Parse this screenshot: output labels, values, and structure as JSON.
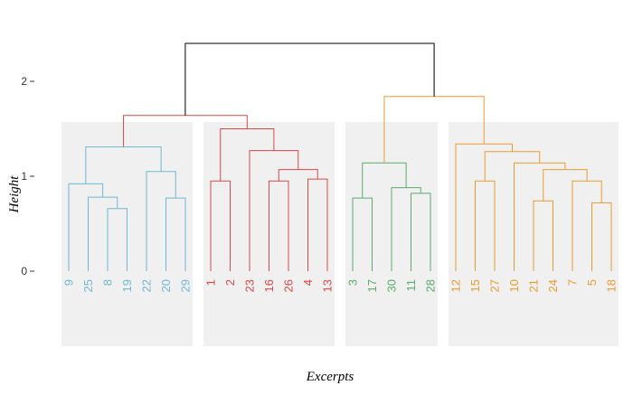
{
  "chart_data": {
    "type": "dendrogram",
    "xlabel": "Excerpts",
    "ylabel": "Height",
    "y_ticks": [
      0,
      1,
      2
    ],
    "ylim": [
      -0.78,
      2.6
    ],
    "grid": false,
    "colors": {
      "cluster1": "#6db8d2",
      "cluster2": "#d94848",
      "cluster3": "#5aab6b",
      "cluster4": "#e89c30",
      "root": "#000000",
      "panel": "#f0f0f0"
    },
    "clusters": [
      {
        "color_key": "cluster1",
        "leaves": [
          "9",
          "25",
          "8",
          "19",
          "22",
          "20",
          "29"
        ]
      },
      {
        "color_key": "cluster2",
        "leaves": [
          "1",
          "2",
          "23",
          "16",
          "26",
          "4",
          "13"
        ]
      },
      {
        "color_key": "cluster3",
        "leaves": [
          "3",
          "17",
          "30",
          "11",
          "28"
        ]
      },
      {
        "color_key": "cluster4",
        "leaves": [
          "12",
          "15",
          "27",
          "10",
          "21",
          "24",
          "7",
          "5",
          "18"
        ]
      }
    ],
    "merges": [
      {
        "id": "c1_a",
        "left": "8",
        "right": "19",
        "height": 0.66,
        "color_key": "cluster1"
      },
      {
        "id": "c1_b",
        "left": "25",
        "right": "c1_a",
        "height": 0.78,
        "color_key": "cluster1"
      },
      {
        "id": "c1_c",
        "left": "9",
        "right": "c1_b",
        "height": 0.92,
        "color_key": "cluster1"
      },
      {
        "id": "c1_d",
        "left": "20",
        "right": "29",
        "height": 0.77,
        "color_key": "cluster1"
      },
      {
        "id": "c1_e",
        "left": "22",
        "right": "c1_d",
        "height": 1.05,
        "color_key": "cluster1"
      },
      {
        "id": "c1",
        "left": "c1_c",
        "right": "c1_e",
        "height": 1.31,
        "color_key": "cluster1"
      },
      {
        "id": "c2_a",
        "left": "1",
        "right": "2",
        "height": 0.95,
        "color_key": "cluster2"
      },
      {
        "id": "c2_b",
        "left": "16",
        "right": "26",
        "height": 0.95,
        "color_key": "cluster2"
      },
      {
        "id": "c2_c",
        "left": "4",
        "right": "13",
        "height": 0.97,
        "color_key": "cluster2"
      },
      {
        "id": "c2_d",
        "left": "c2_b",
        "right": "c2_c",
        "height": 1.07,
        "color_key": "cluster2"
      },
      {
        "id": "c2_e",
        "left": "23",
        "right": "c2_d",
        "height": 1.27,
        "color_key": "cluster2"
      },
      {
        "id": "c2",
        "left": "c2_a",
        "right": "c2_e",
        "height": 1.5,
        "color_key": "cluster2"
      },
      {
        "id": "c3_a",
        "left": "3",
        "right": "17",
        "height": 0.77,
        "color_key": "cluster3"
      },
      {
        "id": "c3_b",
        "left": "11",
        "right": "28",
        "height": 0.82,
        "color_key": "cluster3"
      },
      {
        "id": "c3_c",
        "left": "30",
        "right": "c3_b",
        "height": 0.88,
        "color_key": "cluster3"
      },
      {
        "id": "c3",
        "left": "c3_a",
        "right": "c3_c",
        "height": 1.14,
        "color_key": "cluster3"
      },
      {
        "id": "c4_a",
        "left": "15",
        "right": "27",
        "height": 0.95,
        "color_key": "cluster4"
      },
      {
        "id": "c4_b",
        "left": "21",
        "right": "24",
        "height": 0.74,
        "color_key": "cluster4"
      },
      {
        "id": "c4_c",
        "left": "5",
        "right": "18",
        "height": 0.72,
        "color_key": "cluster4"
      },
      {
        "id": "c4_d",
        "left": "7",
        "right": "c4_c",
        "height": 0.95,
        "color_key": "cluster4"
      },
      {
        "id": "c4_e",
        "left": "c4_b",
        "right": "c4_d",
        "height": 1.07,
        "color_key": "cluster4"
      },
      {
        "id": "c4_f",
        "left": "10",
        "right": "c4_e",
        "height": 1.14,
        "color_key": "cluster4"
      },
      {
        "id": "c4_g",
        "left": "c4_a",
        "right": "c4_f",
        "height": 1.26,
        "color_key": "cluster4"
      },
      {
        "id": "c4_h",
        "left": "12",
        "right": "c4_g",
        "height": 1.34,
        "color_key": "cluster4"
      },
      {
        "id": "c12",
        "left": "c1",
        "right": "c2",
        "height": 1.64,
        "color_key": "cluster2"
      },
      {
        "id": "c34",
        "left": "c3",
        "right": "c4_h",
        "height": 1.84,
        "color_key": "cluster4"
      },
      {
        "id": "root",
        "left": "c12",
        "right": "c34",
        "height": 2.4,
        "color_key": "root"
      }
    ]
  }
}
